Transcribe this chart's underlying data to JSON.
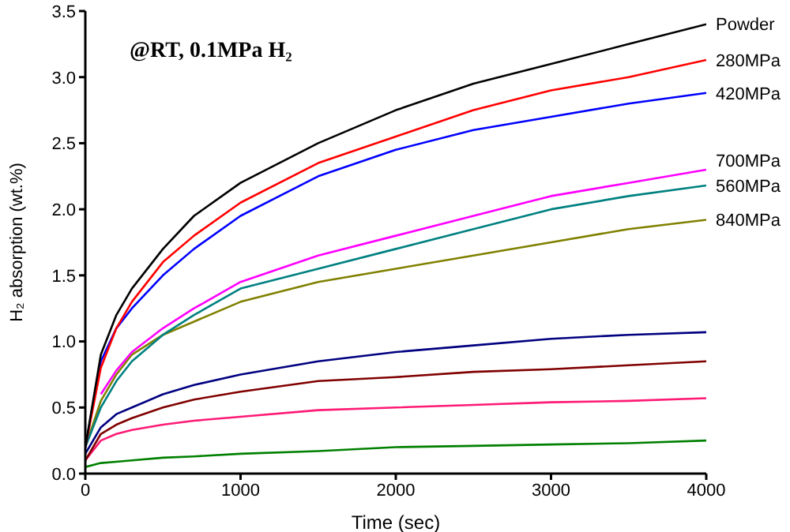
{
  "chart_data": {
    "type": "line",
    "xlabel": "Time (sec)",
    "ylabel": "H₂ absorption (wt.%)",
    "annotations": [
      "@RT, 0.1MPa H₂"
    ],
    "x": [
      0,
      100,
      200,
      300,
      500,
      700,
      1000,
      1500,
      2000,
      2500,
      3000,
      3500,
      4000
    ],
    "series": [
      {
        "name": "Powder",
        "color": "#000000",
        "values": [
          0.2,
          0.9,
          1.2,
          1.4,
          1.7,
          1.95,
          2.2,
          2.5,
          2.75,
          2.95,
          3.1,
          3.25,
          3.4
        ]
      },
      {
        "name": "280MPa",
        "color": "#ff0000",
        "values": [
          0.2,
          0.8,
          1.1,
          1.3,
          1.6,
          1.8,
          2.05,
          2.35,
          2.55,
          2.75,
          2.9,
          3.0,
          3.13
        ]
      },
      {
        "name": "420MPa",
        "color": "#0000ff",
        "values": [
          0.2,
          0.85,
          1.1,
          1.25,
          1.5,
          1.7,
          1.95,
          2.25,
          2.45,
          2.6,
          2.7,
          2.8,
          2.88
        ]
      },
      {
        "name": "700MPa",
        "color": "#ff00ff",
        "values": [
          null,
          0.6,
          0.78,
          0.92,
          1.1,
          1.25,
          1.45,
          1.65,
          1.8,
          1.95,
          2.1,
          2.2,
          2.3
        ]
      },
      {
        "name": "560MPa",
        "color": "#008080",
        "values": [
          0.2,
          0.5,
          0.7,
          0.85,
          1.05,
          1.2,
          1.4,
          1.55,
          1.7,
          1.85,
          2.0,
          2.1,
          2.18
        ]
      },
      {
        "name": "840MPa",
        "color": "#808000",
        "values": [
          0.2,
          0.55,
          0.75,
          0.9,
          1.05,
          1.15,
          1.3,
          1.45,
          1.55,
          1.65,
          1.75,
          1.85,
          1.92
        ]
      },
      {
        "color": "#000080",
        "values": [
          0.15,
          0.35,
          0.45,
          0.5,
          0.6,
          0.67,
          0.75,
          0.85,
          0.92,
          0.97,
          1.02,
          1.05,
          1.07
        ]
      },
      {
        "color": "#800000",
        "values": [
          0.1,
          0.3,
          0.37,
          0.42,
          0.5,
          0.56,
          0.62,
          0.7,
          0.73,
          0.77,
          0.79,
          0.82,
          0.85
        ]
      },
      {
        "color": "#ff1a75",
        "values": [
          0.1,
          0.25,
          0.3,
          0.33,
          0.37,
          0.4,
          0.43,
          0.48,
          0.5,
          0.52,
          0.54,
          0.55,
          0.57
        ]
      },
      {
        "color": "#008000",
        "values": [
          0.05,
          0.08,
          0.09,
          0.1,
          0.12,
          0.13,
          0.15,
          0.17,
          0.2,
          0.21,
          0.22,
          0.23,
          0.25
        ]
      }
    ],
    "xlim": [
      0,
      4000
    ],
    "xticks": [
      0,
      1000,
      2000,
      3000,
      4000
    ],
    "ylim": [
      0,
      3.5
    ],
    "yticks": [
      {
        "value": 0,
        "label": "0.0"
      },
      {
        "value": 0.5,
        "label": "0.5"
      },
      {
        "value": 1,
        "label": "1.0"
      },
      {
        "value": 1.5,
        "label": "1.5"
      },
      {
        "value": 2,
        "label": "2.0"
      },
      {
        "value": 2.5,
        "label": "2.5"
      },
      {
        "value": 3,
        "label": "3.0"
      },
      {
        "value": 3.5,
        "label": "3.5"
      }
    ],
    "grid": false,
    "legend": false,
    "marker": "none",
    "line_style": "solid"
  }
}
